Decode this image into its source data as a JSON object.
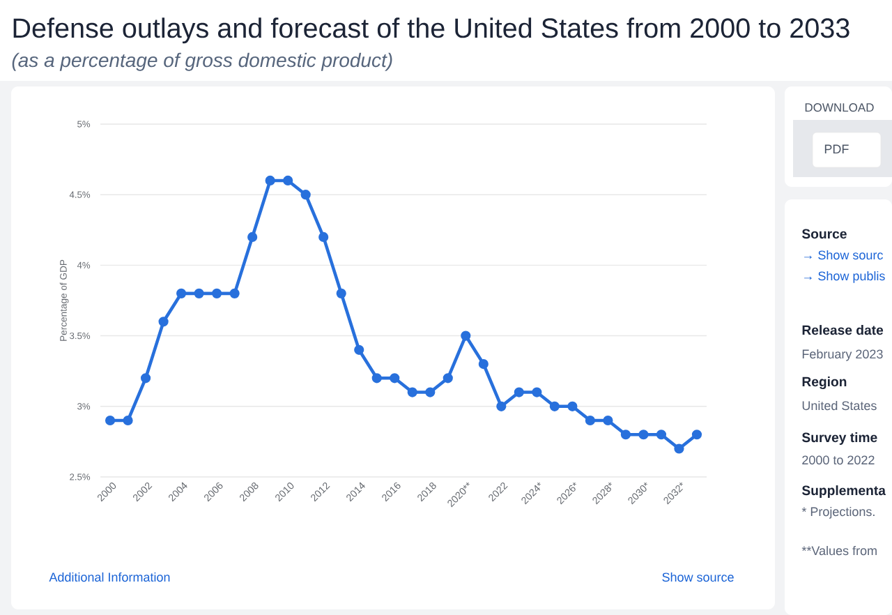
{
  "chart_data": [
    {
      "type": "line",
      "title": "Defense outlays and forecast of the United States from 2000 to 2033",
      "subtitle": "(as a percentage of gross domestic product)",
      "ylabel": "Percentage of GDP",
      "categories": [
        "2000",
        null,
        "2002",
        null,
        "2004",
        null,
        "2006",
        null,
        "2008",
        null,
        "2010",
        null,
        "2012",
        null,
        "2014",
        null,
        "2016",
        null,
        "2018",
        null,
        "2020**",
        null,
        "2022",
        null,
        "2024*",
        null,
        "2026*",
        null,
        "2028*",
        null,
        "2030*",
        null,
        "2032*",
        null
      ],
      "values": [
        2.9,
        2.9,
        3.2,
        3.6,
        3.8,
        3.8,
        3.8,
        3.8,
        4.2,
        4.6,
        4.6,
        4.5,
        4.2,
        3.8,
        3.4,
        3.2,
        3.2,
        3.1,
        3.1,
        3.2,
        3.5,
        3.3,
        3.0,
        3.1,
        3.1,
        3.0,
        3.0,
        2.9,
        2.9,
        2.8,
        2.8,
        2.8,
        2.7,
        2.8
      ],
      "color": "#2870dc",
      "marker": "circle",
      "line_style": "solid",
      "grid": "y",
      "ylim": [
        2.5,
        5
      ],
      "yticks": [
        {
          "value": 2.5,
          "label": "2.5%"
        },
        {
          "value": 3,
          "label": "3%"
        },
        {
          "value": 3.5,
          "label": "3.5%"
        },
        {
          "value": 4,
          "label": "4%"
        },
        {
          "value": 4.5,
          "label": "4.5%"
        },
        {
          "value": 5,
          "label": "5%"
        }
      ],
      "annotations": [
        "Additional Information",
        "Show source"
      ]
    },
    {
      "type": "other",
      "annotations": [
        "DOWNLOAD",
        "PDF",
        "Source",
        "→ Show sourc",
        "→ Show publis",
        "Release date",
        "February 2023",
        "Region",
        "United States",
        "Survey time",
        "2000 to 2022",
        "Supplementa",
        "* Projections.",
        "**Values from"
      ]
    }
  ]
}
